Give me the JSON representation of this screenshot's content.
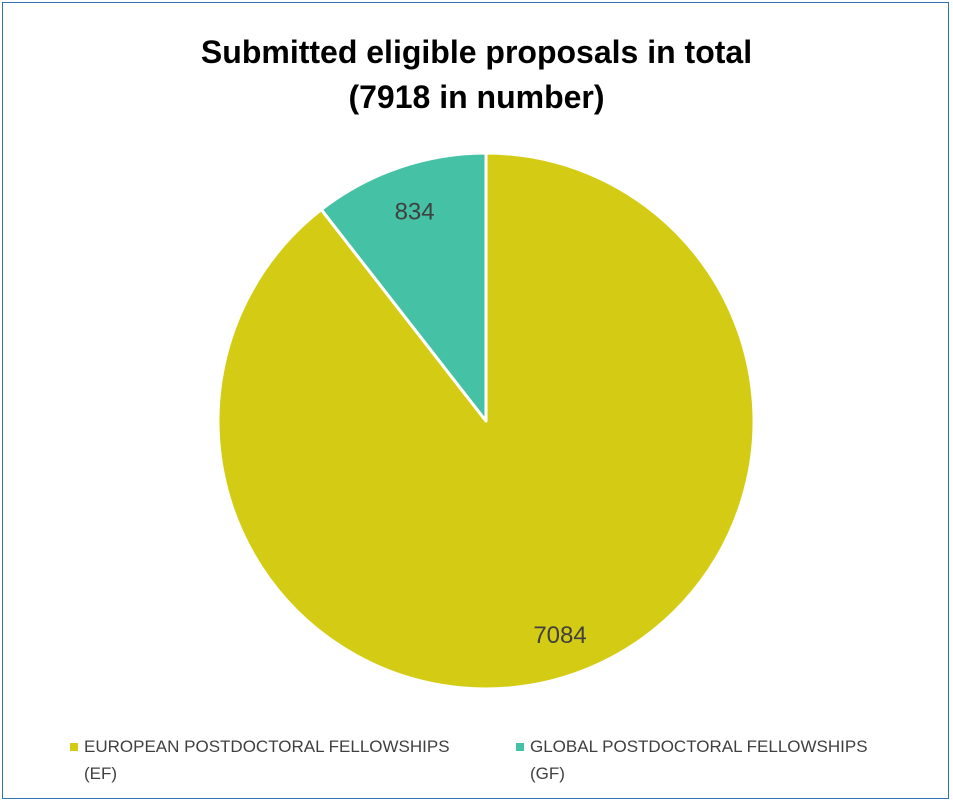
{
  "chart_data": {
    "type": "pie",
    "title_lines": [
      "Submitted eligible proposals in total",
      "(7918 in number)"
    ],
    "categories": [
      "EUROPEAN POSTDOCTORAL FELLOWSHIPS (EF)",
      "GLOBAL POSTDOCTORAL FELLOWSHIPS (GF)"
    ],
    "values": [
      7084,
      834
    ],
    "data_labels": [
      "7084",
      "834"
    ],
    "colors": [
      "#d4cc14",
      "#45c2a6"
    ],
    "legend_lines": [
      [
        "EUROPEAN POSTDOCTORAL FELLOWSHIPS",
        "(EF)"
      ],
      [
        "GLOBAL POSTDOCTORAL FELLOWSHIPS",
        "(GF)"
      ]
    ],
    "legend_placement": "bottom",
    "start_angle": "12 o'clock",
    "direction": "clockwise"
  }
}
